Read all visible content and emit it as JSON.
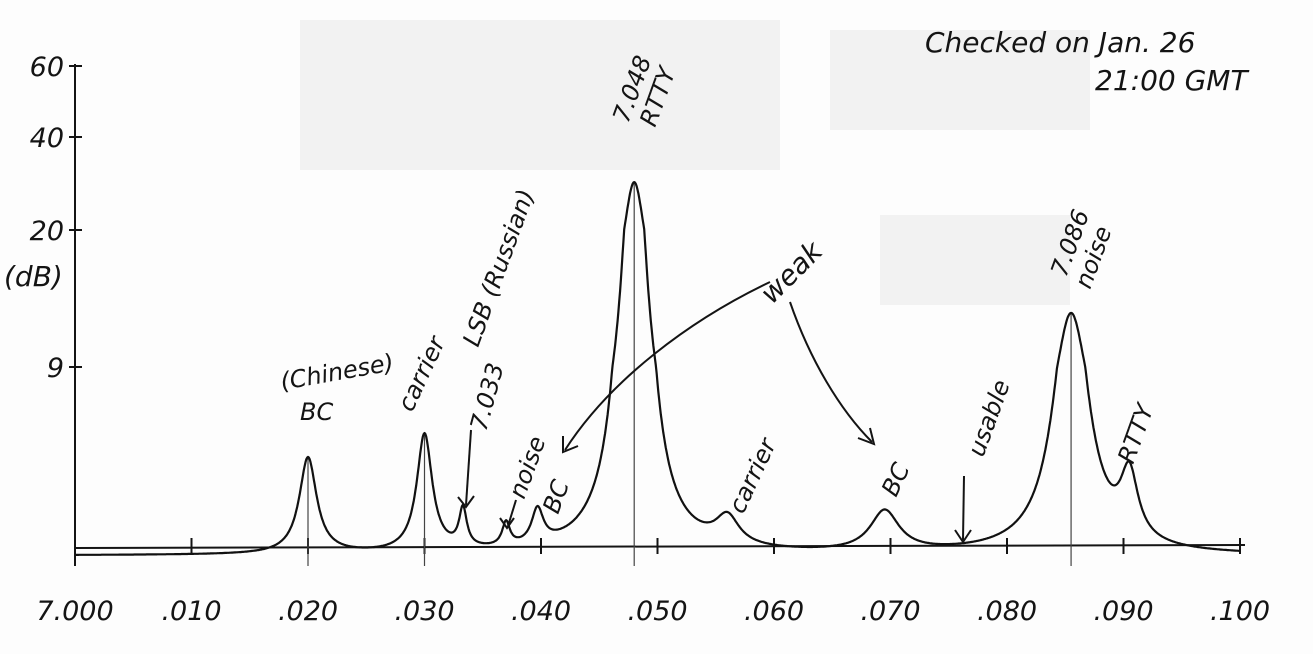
{
  "chart_data": {
    "type": "line",
    "title": "",
    "xlabel": "",
    "ylabel": "(dB)",
    "xlim": [
      0.0,
      0.1
    ],
    "ylim": [
      0,
      60
    ],
    "y_ticks": [
      {
        "value": 60,
        "label": "60"
      },
      {
        "value": 40,
        "label": "40"
      },
      {
        "value": 20,
        "label": "20"
      },
      {
        "value": 9,
        "label": "9"
      }
    ],
    "x_ticks": [
      {
        "value": 0.0,
        "label": "7.000"
      },
      {
        "value": 0.01,
        "label": ".010"
      },
      {
        "value": 0.02,
        "label": ".020"
      },
      {
        "value": 0.03,
        "label": ".030"
      },
      {
        "value": 0.04,
        "label": ".040"
      },
      {
        "value": 0.05,
        "label": ".050"
      },
      {
        "value": 0.06,
        "label": ".060"
      },
      {
        "value": 0.07,
        "label": ".070"
      },
      {
        "value": 0.08,
        "label": ".080"
      },
      {
        "value": 0.09,
        "label": ".090"
      },
      {
        "value": 0.1,
        "label": ".100"
      }
    ],
    "series": [
      {
        "peaks": [
          {
            "x": 0.02,
            "y": 4.5
          },
          {
            "x": 0.03,
            "y": 5.5
          },
          {
            "x": 0.0333,
            "y": 1.8
          },
          {
            "x": 0.037,
            "y": 1.1
          },
          {
            "x": 0.0397,
            "y": 1.6
          },
          {
            "x": 0.048,
            "y": 30
          },
          {
            "x": 0.056,
            "y": 1.3
          },
          {
            "x": 0.0695,
            "y": 1.9
          },
          {
            "x": 0.0855,
            "y": 13
          },
          {
            "x": 0.0905,
            "y": 3.0
          }
        ],
        "baseline": 0.2
      }
    ],
    "annotations": [
      {
        "key": "bc_chinese_1",
        "text": "(Chinese)"
      },
      {
        "key": "bc_chinese_2",
        "text": "BC"
      },
      {
        "key": "carrier1",
        "text": "carrier"
      },
      {
        "key": "lsb",
        "text": "LSB (Russian)"
      },
      {
        "key": "f7033",
        "text": "7.033"
      },
      {
        "key": "noise1",
        "text": "noise"
      },
      {
        "key": "bc2",
        "text": "BC"
      },
      {
        "key": "rtty_freq",
        "text": "7.048"
      },
      {
        "key": "rtty_label",
        "text": "RTTY"
      },
      {
        "key": "weak",
        "text": "weak"
      },
      {
        "key": "carrier2",
        "text": "carrier"
      },
      {
        "key": "bc3",
        "text": "BC"
      },
      {
        "key": "usable",
        "text": "usable"
      },
      {
        "key": "noise_freq",
        "text": "7.086"
      },
      {
        "key": "noise2",
        "text": "noise"
      },
      {
        "key": "rtty2",
        "text": "RTTY"
      }
    ],
    "grid": false,
    "legend": "none"
  },
  "notes": {
    "checked_line1": "Checked on Jan. 26",
    "checked_line2": "21:00 GMT"
  }
}
